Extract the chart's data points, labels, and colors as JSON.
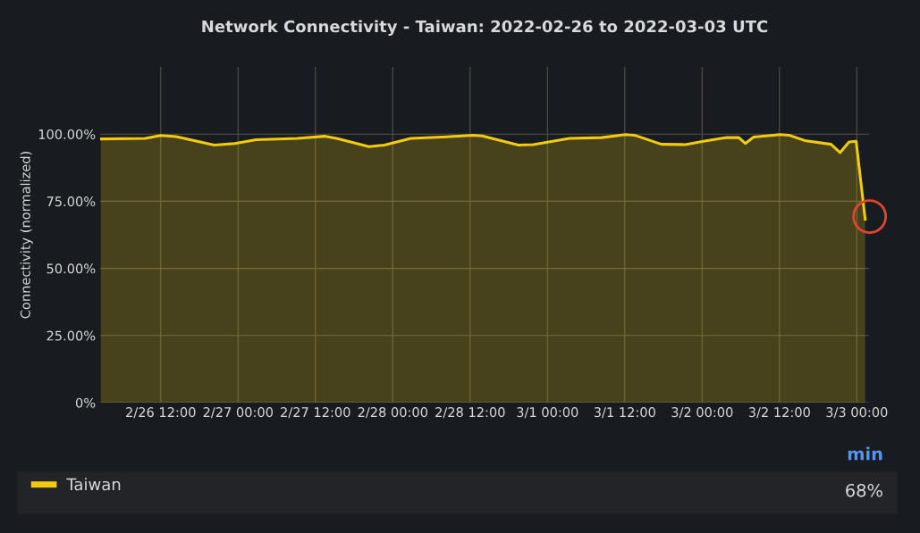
{
  "chart_data": {
    "type": "area",
    "title": "Network Connectivity - Taiwan: 2022-02-26 to 2022-03-03 UTC",
    "ylabel": "Connectivity (normalized)",
    "x": [
      "2022-02-26T02:42",
      "2022-02-26T09:36",
      "2022-02-26T12:00",
      "2022-02-26T14:24",
      "2022-02-26T20:18",
      "2022-02-26T23:30",
      "2022-02-27T02:48",
      "2022-02-27T09:12",
      "2022-02-27T13:24",
      "2022-02-27T15:18",
      "2022-02-27T20:18",
      "2022-02-27T22:42",
      "2022-02-28T02:48",
      "2022-02-28T08:24",
      "2022-02-28T12:30",
      "2022-02-28T13:54",
      "2022-02-28T19:30",
      "2022-02-28T21:48",
      "2022-03-01T03:24",
      "2022-03-01T08:24",
      "2022-03-01T12:06",
      "2022-03-01T13:30",
      "2022-03-01T17:42",
      "2022-03-01T21:24",
      "2022-03-02T00:12",
      "2022-03-02T03:48",
      "2022-03-02T05:42",
      "2022-03-02T06:42",
      "2022-03-02T08:00",
      "2022-03-02T12:06",
      "2022-03-02T13:30",
      "2022-03-02T15:54",
      "2022-03-02T20:00",
      "2022-03-02T21:24",
      "2022-03-02T22:48",
      "2022-03-02T23:54",
      "2022-03-03T01:18"
    ],
    "series": [
      {
        "name": "Taiwan",
        "color": "#f2cc0c",
        "values": [
          98.2,
          98.4,
          99.5,
          99.1,
          95.9,
          96.5,
          97.9,
          98.4,
          99.2,
          98.4,
          95.3,
          95.9,
          98.4,
          99.0,
          99.6,
          99.3,
          95.9,
          96.1,
          98.4,
          98.7,
          99.8,
          99.6,
          96.2,
          96.1,
          97.3,
          98.7,
          98.7,
          96.5,
          98.9,
          99.8,
          99.6,
          97.6,
          96.2,
          93.1,
          97.1,
          97.3,
          68.3
        ]
      }
    ],
    "xlim": [
      "2022-02-26T02:36",
      "2022-03-03T01:54"
    ],
    "xticks": [
      {
        "value": "2022-02-26T12:00",
        "label": "2/26 12:00"
      },
      {
        "value": "2022-02-27T00:00",
        "label": "2/27 00:00"
      },
      {
        "value": "2022-02-27T12:00",
        "label": "2/27 12:00"
      },
      {
        "value": "2022-02-28T00:00",
        "label": "2/28 00:00"
      },
      {
        "value": "2022-02-28T12:00",
        "label": "2/28 12:00"
      },
      {
        "value": "2022-03-01T00:00",
        "label": "3/1 00:00"
      },
      {
        "value": "2022-03-01T12:00",
        "label": "3/1 12:00"
      },
      {
        "value": "2022-03-02T00:00",
        "label": "3/2 00:00"
      },
      {
        "value": "2022-03-02T12:00",
        "label": "3/2 12:00"
      },
      {
        "value": "2022-03-03T00:00",
        "label": "3/3 00:00"
      }
    ],
    "ylim": [
      0,
      125
    ],
    "yticks": [
      {
        "value": 0,
        "label": "0%"
      },
      {
        "value": 25,
        "label": "25.00%"
      },
      {
        "value": 50,
        "label": "50.00%"
      },
      {
        "value": 75,
        "label": "75.00%"
      },
      {
        "value": 100,
        "label": "100.00%"
      }
    ],
    "grid": true,
    "legend": "bottom",
    "annotations": [
      "min",
      "68%"
    ]
  }
}
